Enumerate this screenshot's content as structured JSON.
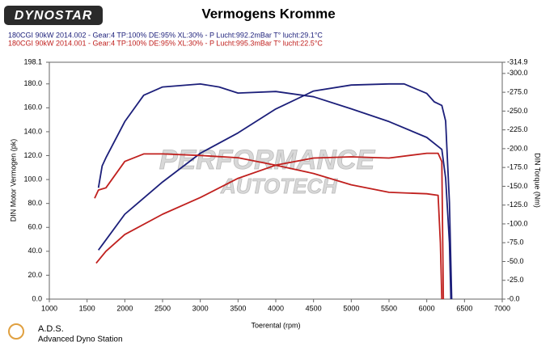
{
  "logo": "DYNOSTAR",
  "watermark": {
    "line1": "PERFORMANCE",
    "line2": "AUTOTECH"
  },
  "footer": {
    "title": "A.D.S.",
    "subtitle": "Advanced Dyno Station"
  },
  "chart_data": {
    "type": "line",
    "title": "Vermogens Kromme",
    "x_label": "Toerental (rpm)",
    "y_label": "DIN Motor Vermogen (pk)",
    "y2_label": "DIN Torque (Nm)",
    "xlim": [
      1000,
      7000
    ],
    "xticks": [
      1000,
      1500,
      2000,
      2500,
      3000,
      3500,
      4000,
      4500,
      5000,
      5500,
      6000,
      6500,
      7000
    ],
    "ylim": [
      0,
      198.1
    ],
    "yticks": [
      {
        "value": 0,
        "label": "0.0"
      },
      {
        "value": 20,
        "label": "20.0"
      },
      {
        "value": 40,
        "label": "40.0"
      },
      {
        "value": 60,
        "label": "60.0"
      },
      {
        "value": 80,
        "label": "80.0"
      },
      {
        "value": 100,
        "label": "100.0"
      },
      {
        "value": 120,
        "label": "120.0"
      },
      {
        "value": 140,
        "label": "140.0"
      },
      {
        "value": 160,
        "label": "160.0"
      },
      {
        "value": 180,
        "label": "180.0"
      },
      198.1
    ],
    "y2lim": [
      0,
      -314.9
    ],
    "y2ticks": [
      {
        "value": 0,
        "label": "-0.0"
      },
      {
        "value": -25,
        "label": "-25.0"
      },
      {
        "value": -50,
        "label": "-50.0"
      },
      {
        "value": -75,
        "label": "-75.0"
      },
      {
        "value": -100,
        "label": "-100.0"
      },
      {
        "value": -125,
        "label": "-125.0"
      },
      {
        "value": -150,
        "label": "-150.0"
      },
      {
        "value": -175,
        "label": "-175.0"
      },
      {
        "value": -200,
        "label": "-200.0"
      },
      {
        "value": -225,
        "label": "-225.0"
      },
      {
        "value": -250,
        "label": "-250.0"
      },
      {
        "value": -275,
        "label": "-275.0"
      },
      {
        "value": -300,
        "label": "-300.0"
      },
      -314.9
    ],
    "grid": false,
    "series": [
      {
        "name": "180CGI 90kW 2014.002 - Gear:4 TP:100% DE:95% XL:30%   - P Lucht:992.2mBar T° lucht:29.1°C",
        "color": "#1c1f7a",
        "x": [
          1650,
          2000,
          2500,
          3000,
          3500,
          4000,
          4500,
          5000,
          5500,
          5700,
          6000,
          6100,
          6200,
          6250,
          6300,
          6330
        ],
        "values": [
          41,
          71,
          98,
          122,
          139,
          159,
          174,
          179,
          180,
          180,
          172,
          165,
          162,
          149,
          81,
          0
        ]
      },
      {
        "name": "180CGI 90kW 2014.001 - Gear:4 TP:100% DE:95% XL:30%   - P Lucht:995.3mBar T° lucht:22.5°C",
        "color": "#c0201e",
        "x": [
          1620,
          1750,
          2000,
          2500,
          3000,
          3500,
          4000,
          4500,
          5000,
          5500,
          6000,
          6150,
          6200,
          6220
        ],
        "values": [
          30,
          40,
          54,
          71,
          85,
          101,
          112,
          118,
          119,
          118,
          122,
          122,
          115,
          0
        ]
      },
      {
        "color": "#1c1f7a",
        "axis": "y2",
        "x": [
          1650,
          1700,
          1750,
          2000,
          2250,
          2500,
          3000,
          3250,
          3500,
          4000,
          4500,
          5000,
          5500,
          6000,
          6200,
          6250,
          6300,
          6320
        ],
        "values": [
          -148,
          -177,
          -188,
          -236,
          -271,
          -282,
          -286,
          -282,
          -274,
          -276,
          -269,
          -253,
          -236,
          -215,
          -199,
          -161,
          -75,
          0
        ]
      },
      {
        "color": "#c0201e",
        "axis": "y2",
        "x": [
          1600,
          1650,
          1750,
          2000,
          2250,
          2500,
          3000,
          3500,
          4000,
          4500,
          5000,
          5500,
          6000,
          6150,
          6180,
          6200
        ],
        "values": [
          -134,
          -145,
          -148,
          -183,
          -193,
          -193,
          -191,
          -188,
          -178,
          -167,
          -152,
          -142,
          -140,
          -138,
          -75,
          0
        ]
      }
    ]
  }
}
